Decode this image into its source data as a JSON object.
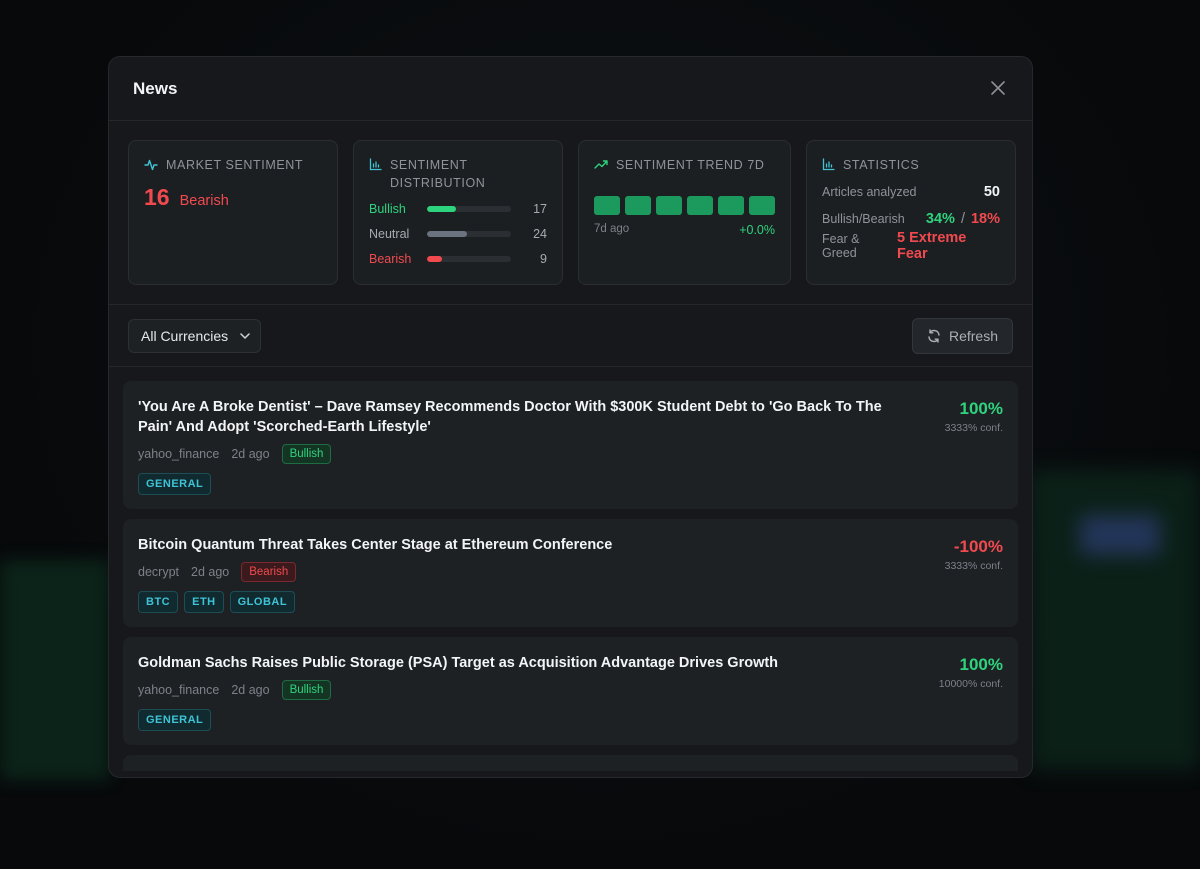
{
  "modal": {
    "title": "News"
  },
  "market_sentiment": {
    "title": "MARKET SENTIMENT",
    "value": "16",
    "label": "Bearish"
  },
  "distribution": {
    "title": "SENTIMENT DISTRIBUTION",
    "rows": [
      {
        "label": "Bullish",
        "count": "17",
        "fraction": 0.34,
        "color": "#2ed37d"
      },
      {
        "label": "Neutral",
        "count": "24",
        "fraction": 0.48,
        "color": "#6b7280"
      },
      {
        "label": "Bearish",
        "count": "9",
        "fraction": 0.18,
        "color": "#f04a4f"
      }
    ]
  },
  "trend": {
    "title": "SENTIMENT TREND 7D",
    "blocks": 6,
    "start_label": "7d ago",
    "change": "+0.0%"
  },
  "statistics": {
    "title": "STATISTICS",
    "articles_label": "Articles analyzed",
    "articles_value": "50",
    "ratio_label": "Bullish/Bearish",
    "bullish_pct": "34%",
    "separator": "/",
    "bearish_pct": "18%",
    "fg_label": "Fear & Greed",
    "fg_value": "5 Extreme Fear"
  },
  "toolbar": {
    "currency_select": "All Currencies",
    "refresh_label": "Refresh"
  },
  "news": [
    {
      "title": "'You Are A Broke Dentist' – Dave Ramsey Recommends Doctor With $300K Student Debt to 'Go Back To The Pain' And Adopt 'Scorched-Earth Lifestyle'",
      "source": "yahoo_finance",
      "time": "2d ago",
      "sentiment": "Bullish",
      "tags": [
        "GENERAL"
      ],
      "score": "100%",
      "conf": "3333% conf."
    },
    {
      "title": "Bitcoin Quantum Threat Takes Center Stage at Ethereum Conference",
      "source": "decrypt",
      "time": "2d ago",
      "sentiment": "Bearish",
      "tags": [
        "BTC",
        "ETH",
        "GLOBAL"
      ],
      "score": "-100%",
      "conf": "3333% conf."
    },
    {
      "title": "Goldman Sachs Raises Public Storage (PSA) Target as Acquisition Advantage Drives Growth",
      "source": "yahoo_finance",
      "time": "2d ago",
      "sentiment": "Bullish",
      "tags": [
        "GENERAL"
      ],
      "score": "100%",
      "conf": "10000% conf."
    }
  ]
}
